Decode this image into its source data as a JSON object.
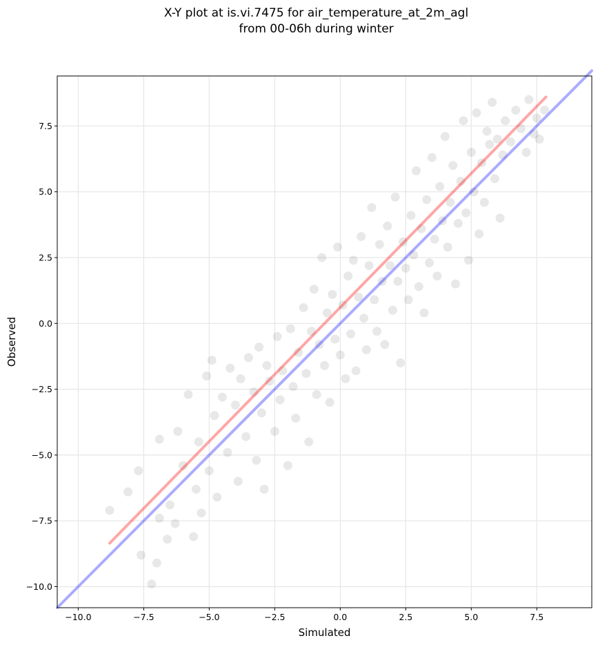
{
  "chart_data": {
    "type": "scatter",
    "title_line1": "X-Y plot at is.vi.7475 for air_temperature_at_2m_agl",
    "title_line2": "from 00-06h during winter",
    "xlabel": "Simulated",
    "ylabel": "Observed",
    "xlim": [
      -10.8,
      9.6
    ],
    "ylim": [
      -10.8,
      9.4
    ],
    "xticks": [
      -10.0,
      -7.5,
      -5.0,
      -2.5,
      0.0,
      2.5,
      5.0,
      7.5
    ],
    "xtick_labels": [
      "−10.0",
      "−7.5",
      "−5.0",
      "−2.5",
      "0.0",
      "2.5",
      "5.0",
      "7.5"
    ],
    "yticks": [
      -10.0,
      -7.5,
      -5.0,
      -2.5,
      0.0,
      2.5,
      5.0,
      7.5
    ],
    "ytick_labels": [
      "−10.0",
      "−7.5",
      "−5.0",
      "−2.5",
      "0.0",
      "2.5",
      "5.0",
      "7.5"
    ],
    "grid": true,
    "point_color": "#000000",
    "point_alpha": 0.09,
    "series": [
      {
        "values": [
          [
            -8.8,
            -7.1
          ],
          [
            -8.1,
            -6.4
          ],
          [
            -7.7,
            -5.6
          ],
          [
            -7.6,
            -8.8
          ],
          [
            -7.2,
            -9.9
          ],
          [
            -7.0,
            -9.1
          ],
          [
            -6.9,
            -7.4
          ],
          [
            -6.9,
            -4.4
          ],
          [
            -6.6,
            -8.2
          ],
          [
            -6.5,
            -6.9
          ],
          [
            -6.3,
            -7.6
          ],
          [
            -6.2,
            -4.1
          ],
          [
            -6.0,
            -5.4
          ],
          [
            -5.8,
            -2.7
          ],
          [
            -5.6,
            -8.1
          ],
          [
            -5.5,
            -6.3
          ],
          [
            -5.4,
            -4.5
          ],
          [
            -5.3,
            -7.2
          ],
          [
            -5.1,
            -2.0
          ],
          [
            -5.0,
            -5.6
          ],
          [
            -4.9,
            -1.4
          ],
          [
            -4.8,
            -3.5
          ],
          [
            -4.7,
            -6.6
          ],
          [
            -4.5,
            -2.8
          ],
          [
            -4.3,
            -4.9
          ],
          [
            -4.2,
            -1.7
          ],
          [
            -4.0,
            -3.1
          ],
          [
            -3.9,
            -6.0
          ],
          [
            -3.8,
            -2.1
          ],
          [
            -3.6,
            -4.3
          ],
          [
            -3.5,
            -1.3
          ],
          [
            -3.3,
            -2.6
          ],
          [
            -3.2,
            -5.2
          ],
          [
            -3.1,
            -0.9
          ],
          [
            -3.0,
            -3.4
          ],
          [
            -2.9,
            -6.3
          ],
          [
            -2.8,
            -1.6
          ],
          [
            -2.7,
            -2.2
          ],
          [
            -2.5,
            -4.1
          ],
          [
            -2.4,
            -0.5
          ],
          [
            -2.3,
            -2.9
          ],
          [
            -2.2,
            -1.8
          ],
          [
            -2.0,
            -5.4
          ],
          [
            -1.9,
            -0.2
          ],
          [
            -1.8,
            -2.4
          ],
          [
            -1.7,
            -3.6
          ],
          [
            -1.6,
            -1.1
          ],
          [
            -1.4,
            0.6
          ],
          [
            -1.3,
            -1.9
          ],
          [
            -1.2,
            -4.5
          ],
          [
            -1.1,
            -0.3
          ],
          [
            -1.0,
            1.3
          ],
          [
            -0.9,
            -2.7
          ],
          [
            -0.8,
            -0.8
          ],
          [
            -0.7,
            2.5
          ],
          [
            -0.6,
            -1.6
          ],
          [
            -0.5,
            0.4
          ],
          [
            -0.4,
            -3.0
          ],
          [
            -0.3,
            1.1
          ],
          [
            -0.2,
            -0.6
          ],
          [
            -0.1,
            2.9
          ],
          [
            0.0,
            -1.2
          ],
          [
            0.1,
            0.7
          ],
          [
            0.2,
            -2.1
          ],
          [
            0.3,
            1.8
          ],
          [
            0.4,
            -0.4
          ],
          [
            0.5,
            2.4
          ],
          [
            0.6,
            -1.8
          ],
          [
            0.7,
            1.0
          ],
          [
            0.8,
            3.3
          ],
          [
            0.9,
            0.2
          ],
          [
            1.0,
            -1.0
          ],
          [
            1.1,
            2.2
          ],
          [
            1.2,
            4.4
          ],
          [
            1.3,
            0.9
          ],
          [
            1.4,
            -0.3
          ],
          [
            1.5,
            3.0
          ],
          [
            1.6,
            1.6
          ],
          [
            1.7,
            -0.8
          ],
          [
            1.8,
            3.7
          ],
          [
            1.9,
            2.2
          ],
          [
            2.0,
            0.5
          ],
          [
            2.1,
            4.8
          ],
          [
            2.2,
            1.6
          ],
          [
            2.3,
            -1.5
          ],
          [
            2.4,
            3.1
          ],
          [
            2.5,
            2.1
          ],
          [
            2.6,
            0.9
          ],
          [
            2.7,
            4.1
          ],
          [
            2.8,
            2.6
          ],
          [
            2.9,
            5.8
          ],
          [
            3.0,
            1.4
          ],
          [
            3.1,
            3.6
          ],
          [
            3.2,
            0.4
          ],
          [
            3.3,
            4.7
          ],
          [
            3.4,
            2.3
          ],
          [
            3.5,
            6.3
          ],
          [
            3.6,
            3.2
          ],
          [
            3.7,
            1.8
          ],
          [
            3.8,
            5.2
          ],
          [
            3.9,
            3.9
          ],
          [
            4.0,
            7.1
          ],
          [
            4.1,
            2.9
          ],
          [
            4.2,
            4.6
          ],
          [
            4.3,
            6.0
          ],
          [
            4.4,
            1.5
          ],
          [
            4.5,
            3.8
          ],
          [
            4.6,
            5.4
          ],
          [
            4.7,
            7.7
          ],
          [
            4.8,
            4.2
          ],
          [
            4.9,
            2.4
          ],
          [
            5.0,
            6.5
          ],
          [
            5.1,
            5.0
          ],
          [
            5.2,
            8.0
          ],
          [
            5.3,
            3.4
          ],
          [
            5.4,
            6.1
          ],
          [
            5.5,
            4.6
          ],
          [
            5.6,
            7.3
          ],
          [
            5.7,
            6.8
          ],
          [
            5.8,
            8.4
          ],
          [
            5.9,
            5.5
          ],
          [
            6.0,
            7.0
          ],
          [
            6.1,
            4.0
          ],
          [
            6.2,
            6.4
          ],
          [
            6.3,
            7.7
          ],
          [
            6.5,
            6.9
          ],
          [
            6.7,
            8.1
          ],
          [
            6.9,
            7.4
          ],
          [
            7.1,
            6.5
          ],
          [
            7.2,
            8.5
          ],
          [
            7.4,
            7.2
          ],
          [
            7.5,
            7.8
          ],
          [
            7.6,
            7.0
          ],
          [
            7.8,
            8.1
          ]
        ]
      }
    ],
    "lines": [
      {
        "role": "one-to-one",
        "color": "#0000ff",
        "alpha": 0.33,
        "points": [
          [
            -10.8,
            -10.8
          ],
          [
            9.6,
            9.6
          ]
        ]
      },
      {
        "role": "regression fit",
        "color": "#ff0000",
        "alpha": 0.35,
        "points": [
          [
            -8.8,
            -8.35
          ],
          [
            7.85,
            8.6
          ]
        ]
      }
    ]
  }
}
